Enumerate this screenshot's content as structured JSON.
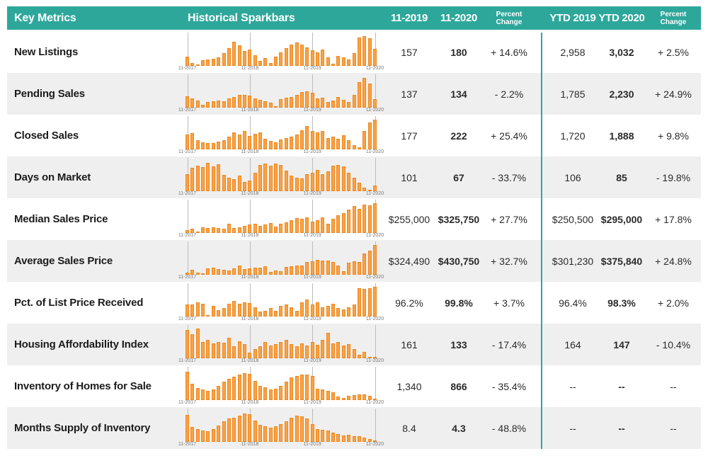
{
  "header": {
    "key_metrics": "Key Metrics",
    "sparkbars": "Historical Sparkbars",
    "col_m2019": "11-2019",
    "col_m2020": "11-2020",
    "col_m_change": "Percent Change",
    "col_ytd2019": "YTD 2019",
    "col_ytd2020": "YTD 2020",
    "col_ytd_change": "Percent Change"
  },
  "colors": {
    "teal": "#2EA79B",
    "bar_fill": "#F9A242",
    "bar_border": "#EE8722",
    "row_alt": "#EFEFEF",
    "gridline": "#BBBBBB"
  },
  "chart_data": {
    "type": "table",
    "title": "Key Metrics with Historical Sparkbars",
    "columns": [
      "Key Metrics",
      "Historical Sparkbars",
      "11-2019",
      "11-2020",
      "Percent Change",
      "YTD 2019",
      "YTD 2020",
      "Percent Change"
    ],
    "spark_type": "bar",
    "spark_x_labels": [
      "11-2017",
      "11-2018",
      "11-2019",
      "11-2020"
    ],
    "spark_months": 37,
    "rows": [
      {
        "metric": "New Listings",
        "m2019": "157",
        "m2020": "180",
        "m_change": "+ 14.6%",
        "ytd2019": "2,958",
        "ytd2020": "3,032",
        "ytd_change": "+ 2.5%",
        "spark": [
          0.32,
          0.1,
          0.04,
          0.2,
          0.22,
          0.24,
          0.28,
          0.44,
          0.6,
          0.8,
          0.68,
          0.5,
          0.55,
          0.36,
          0.16,
          0.25,
          0.1,
          0.3,
          0.45,
          0.6,
          0.72,
          0.78,
          0.72,
          0.62,
          0.52,
          0.46,
          0.54,
          0.28,
          0.08,
          0.33,
          0.29,
          0.22,
          0.42,
          0.95,
          1.0,
          0.92,
          0.58
        ]
      },
      {
        "metric": "Pending Sales",
        "m2019": "137",
        "m2020": "134",
        "m_change": "- 2.2%",
        "ytd2019": "1,785",
        "ytd2020": "2,230",
        "ytd_change": "+ 24.9%",
        "spark": [
          0.38,
          0.32,
          0.24,
          0.1,
          0.2,
          0.22,
          0.24,
          0.22,
          0.3,
          0.36,
          0.42,
          0.44,
          0.4,
          0.3,
          0.26,
          0.22,
          0.16,
          0.04,
          0.28,
          0.33,
          0.36,
          0.44,
          0.52,
          0.55,
          0.5,
          0.3,
          0.33,
          0.18,
          0.24,
          0.36,
          0.26,
          0.18,
          0.44,
          0.85,
          1.0,
          0.8,
          0.28
        ]
      },
      {
        "metric": "Closed Sales",
        "m2019": "177",
        "m2020": "222",
        "m_change": "+ 25.4%",
        "ytd2019": "1,720",
        "ytd2020": "1,888",
        "ytd_change": "+ 9.8%",
        "spark": [
          0.5,
          0.55,
          0.32,
          0.24,
          0.22,
          0.22,
          0.26,
          0.32,
          0.44,
          0.56,
          0.5,
          0.62,
          0.46,
          0.52,
          0.56,
          0.36,
          0.28,
          0.24,
          0.34,
          0.38,
          0.42,
          0.5,
          0.64,
          0.78,
          0.62,
          0.58,
          0.62,
          0.38,
          0.42,
          0.35,
          0.48,
          0.3,
          0.14,
          0.06,
          0.62,
          0.9,
          1.0
        ]
      },
      {
        "metric": "Days on Market",
        "m2019": "101",
        "m2020": "67",
        "m_change": "- 33.7%",
        "ytd2019": "106",
        "ytd2020": "85",
        "ytd_change": "- 19.8%",
        "spark": [
          0.58,
          0.78,
          0.85,
          0.8,
          0.95,
          0.84,
          0.9,
          0.55,
          0.45,
          0.4,
          0.52,
          0.3,
          0.36,
          0.62,
          0.88,
          0.92,
          0.85,
          0.92,
          0.88,
          0.7,
          0.52,
          0.45,
          0.42,
          0.56,
          0.62,
          0.72,
          0.58,
          0.66,
          0.85,
          0.88,
          0.84,
          0.62,
          0.45,
          0.28,
          0.12,
          0.04,
          0.18
        ]
      },
      {
        "metric": "Median Sales Price",
        "m2019": "$255,000",
        "m2020": "$325,750",
        "m_change": "+ 27.7%",
        "ytd2019": "$250,500",
        "ytd2020": "$295,000",
        "ytd_change": "+ 17.8%",
        "spark": [
          0.1,
          0.14,
          0.02,
          0.18,
          0.16,
          0.18,
          0.17,
          0.14,
          0.3,
          0.16,
          0.2,
          0.24,
          0.28,
          0.32,
          0.24,
          0.28,
          0.34,
          0.22,
          0.3,
          0.36,
          0.44,
          0.5,
          0.48,
          0.52,
          0.38,
          0.42,
          0.52,
          0.32,
          0.48,
          0.6,
          0.66,
          0.78,
          0.9,
          0.8,
          0.95,
          0.92,
          1.0
        ]
      },
      {
        "metric": "Average Sales Price",
        "m2019": "$324,490",
        "m2020": "$430,750",
        "m_change": "+ 32.7%",
        "ytd2019": "$301,230",
        "ytd2020": "$375,840",
        "ytd_change": "+ 24.8%",
        "spark": [
          0.06,
          0.16,
          0.08,
          0.02,
          0.22,
          0.24,
          0.2,
          0.16,
          0.14,
          0.22,
          0.32,
          0.18,
          0.22,
          0.24,
          0.24,
          0.28,
          0.1,
          0.14,
          0.12,
          0.26,
          0.28,
          0.3,
          0.3,
          0.42,
          0.46,
          0.5,
          0.48,
          0.48,
          0.44,
          0.3,
          0.12,
          0.4,
          0.46,
          0.42,
          0.72,
          0.8,
          1.0
        ]
      },
      {
        "metric": "Pct. of List Price Received",
        "m2019": "96.2%",
        "m2020": "99.8%",
        "m_change": "+ 3.7%",
        "ytd2019": "96.4%",
        "ytd2020": "98.3%",
        "ytd_change": "+ 2.0%",
        "spark": [
          0.4,
          0.4,
          0.48,
          0.42,
          0.04,
          0.36,
          0.22,
          0.28,
          0.44,
          0.52,
          0.42,
          0.48,
          0.46,
          0.3,
          0.16,
          0.2,
          0.28,
          0.2,
          0.36,
          0.4,
          0.3,
          0.18,
          0.48,
          0.56,
          0.4,
          0.48,
          0.3,
          0.36,
          0.44,
          0.28,
          0.24,
          0.3,
          0.4,
          0.96,
          0.92,
          0.96,
          1.0
        ]
      },
      {
        "metric": "Housing Affordability Index",
        "m2019": "161",
        "m2020": "133",
        "m_change": "- 17.4%",
        "ytd2019": "164",
        "ytd2020": "147",
        "ytd_change": "- 10.4%",
        "spark": [
          0.95,
          0.8,
          1.0,
          0.55,
          0.62,
          0.5,
          0.55,
          0.52,
          0.68,
          0.4,
          0.58,
          0.48,
          0.2,
          0.3,
          0.4,
          0.55,
          0.42,
          0.48,
          0.55,
          0.62,
          0.48,
          0.4,
          0.5,
          0.42,
          0.55,
          0.45,
          0.62,
          0.85,
          0.5,
          0.55,
          0.42,
          0.48,
          0.3,
          0.12,
          0.22,
          0.04,
          0.05
        ]
      },
      {
        "metric": "Inventory of Homes for Sale",
        "m2019": "1,340",
        "m2020": "866",
        "m_change": "- 35.4%",
        "ytd2019": "--",
        "ytd2020": "--",
        "ytd_change": "--",
        "spark": [
          0.95,
          0.55,
          0.4,
          0.35,
          0.3,
          0.35,
          0.48,
          0.62,
          0.72,
          0.78,
          0.85,
          0.9,
          0.88,
          0.65,
          0.48,
          0.42,
          0.35,
          0.38,
          0.48,
          0.62,
          0.75,
          0.82,
          0.85,
          0.85,
          0.8,
          0.38,
          0.35,
          0.32,
          0.25,
          0.12,
          0.06,
          0.15,
          0.16,
          0.18,
          0.2,
          0.15,
          0.04
        ]
      },
      {
        "metric": "Months Supply of Inventory",
        "m2019": "8.4",
        "m2020": "4.3",
        "m_change": "- 48.8%",
        "ytd2019": "--",
        "ytd2020": "--",
        "ytd_change": "--",
        "spark": [
          0.9,
          0.5,
          0.42,
          0.38,
          0.35,
          0.42,
          0.55,
          0.68,
          0.78,
          0.82,
          0.88,
          0.95,
          0.92,
          0.72,
          0.58,
          0.52,
          0.48,
          0.52,
          0.6,
          0.7,
          0.8,
          0.88,
          0.85,
          0.78,
          0.6,
          0.42,
          0.4,
          0.38,
          0.32,
          0.26,
          0.22,
          0.24,
          0.2,
          0.18,
          0.14,
          0.1,
          0.04
        ]
      }
    ]
  }
}
